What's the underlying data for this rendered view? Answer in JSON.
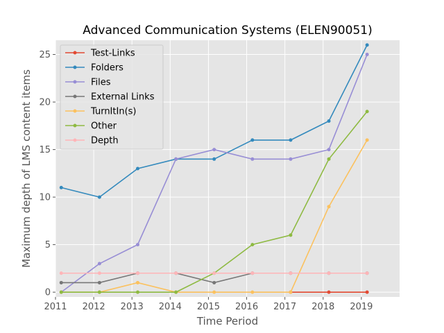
{
  "chart_data": {
    "type": "line",
    "title": "Advanced Communication Systems (ELEN90051)",
    "xlabel": "Time Period",
    "ylabel": "Maximum depth of LMS content items",
    "xlim": [
      2011,
      2020
    ],
    "ylim": [
      -0.5,
      26.5
    ],
    "x_ticks": [
      "2011",
      "2012",
      "2013",
      "2014",
      "2015",
      "2016",
      "2017",
      "2018",
      "2019"
    ],
    "y_ticks": [
      "0",
      "5",
      "10",
      "15",
      "20",
      "25"
    ],
    "grid": true,
    "legend_position": "upper-left",
    "x": [
      2011.15,
      2012.15,
      2013.15,
      2014.15,
      2015.15,
      2016.15,
      2017.15,
      2018.15,
      2019.15
    ],
    "series": [
      {
        "name": "Test-Links",
        "color": "#E24A33",
        "values": [
          null,
          null,
          null,
          null,
          null,
          null,
          0,
          0,
          0
        ]
      },
      {
        "name": "Folders",
        "color": "#348ABD",
        "values": [
          11,
          10,
          13,
          14,
          14,
          16,
          16,
          18,
          26
        ]
      },
      {
        "name": "Files",
        "color": "#988ED5",
        "values": [
          0,
          3,
          5,
          14,
          15,
          14,
          14,
          15,
          25
        ]
      },
      {
        "name": "External Links",
        "color": "#777777",
        "values": [
          1,
          1,
          2,
          2,
          1,
          2,
          2,
          2,
          2
        ]
      },
      {
        "name": "TurnItIn(s)",
        "color": "#FBC15E",
        "values": [
          0,
          0,
          1,
          0,
          0,
          0,
          0,
          9,
          16
        ]
      },
      {
        "name": "Other",
        "color": "#8EBA42",
        "values": [
          0,
          0,
          0,
          0,
          2,
          5,
          6,
          14,
          19
        ]
      },
      {
        "name": "Depth",
        "color": "#FFB5B8",
        "values": [
          2,
          2,
          2,
          2,
          2,
          2,
          2,
          2,
          2
        ]
      }
    ]
  }
}
